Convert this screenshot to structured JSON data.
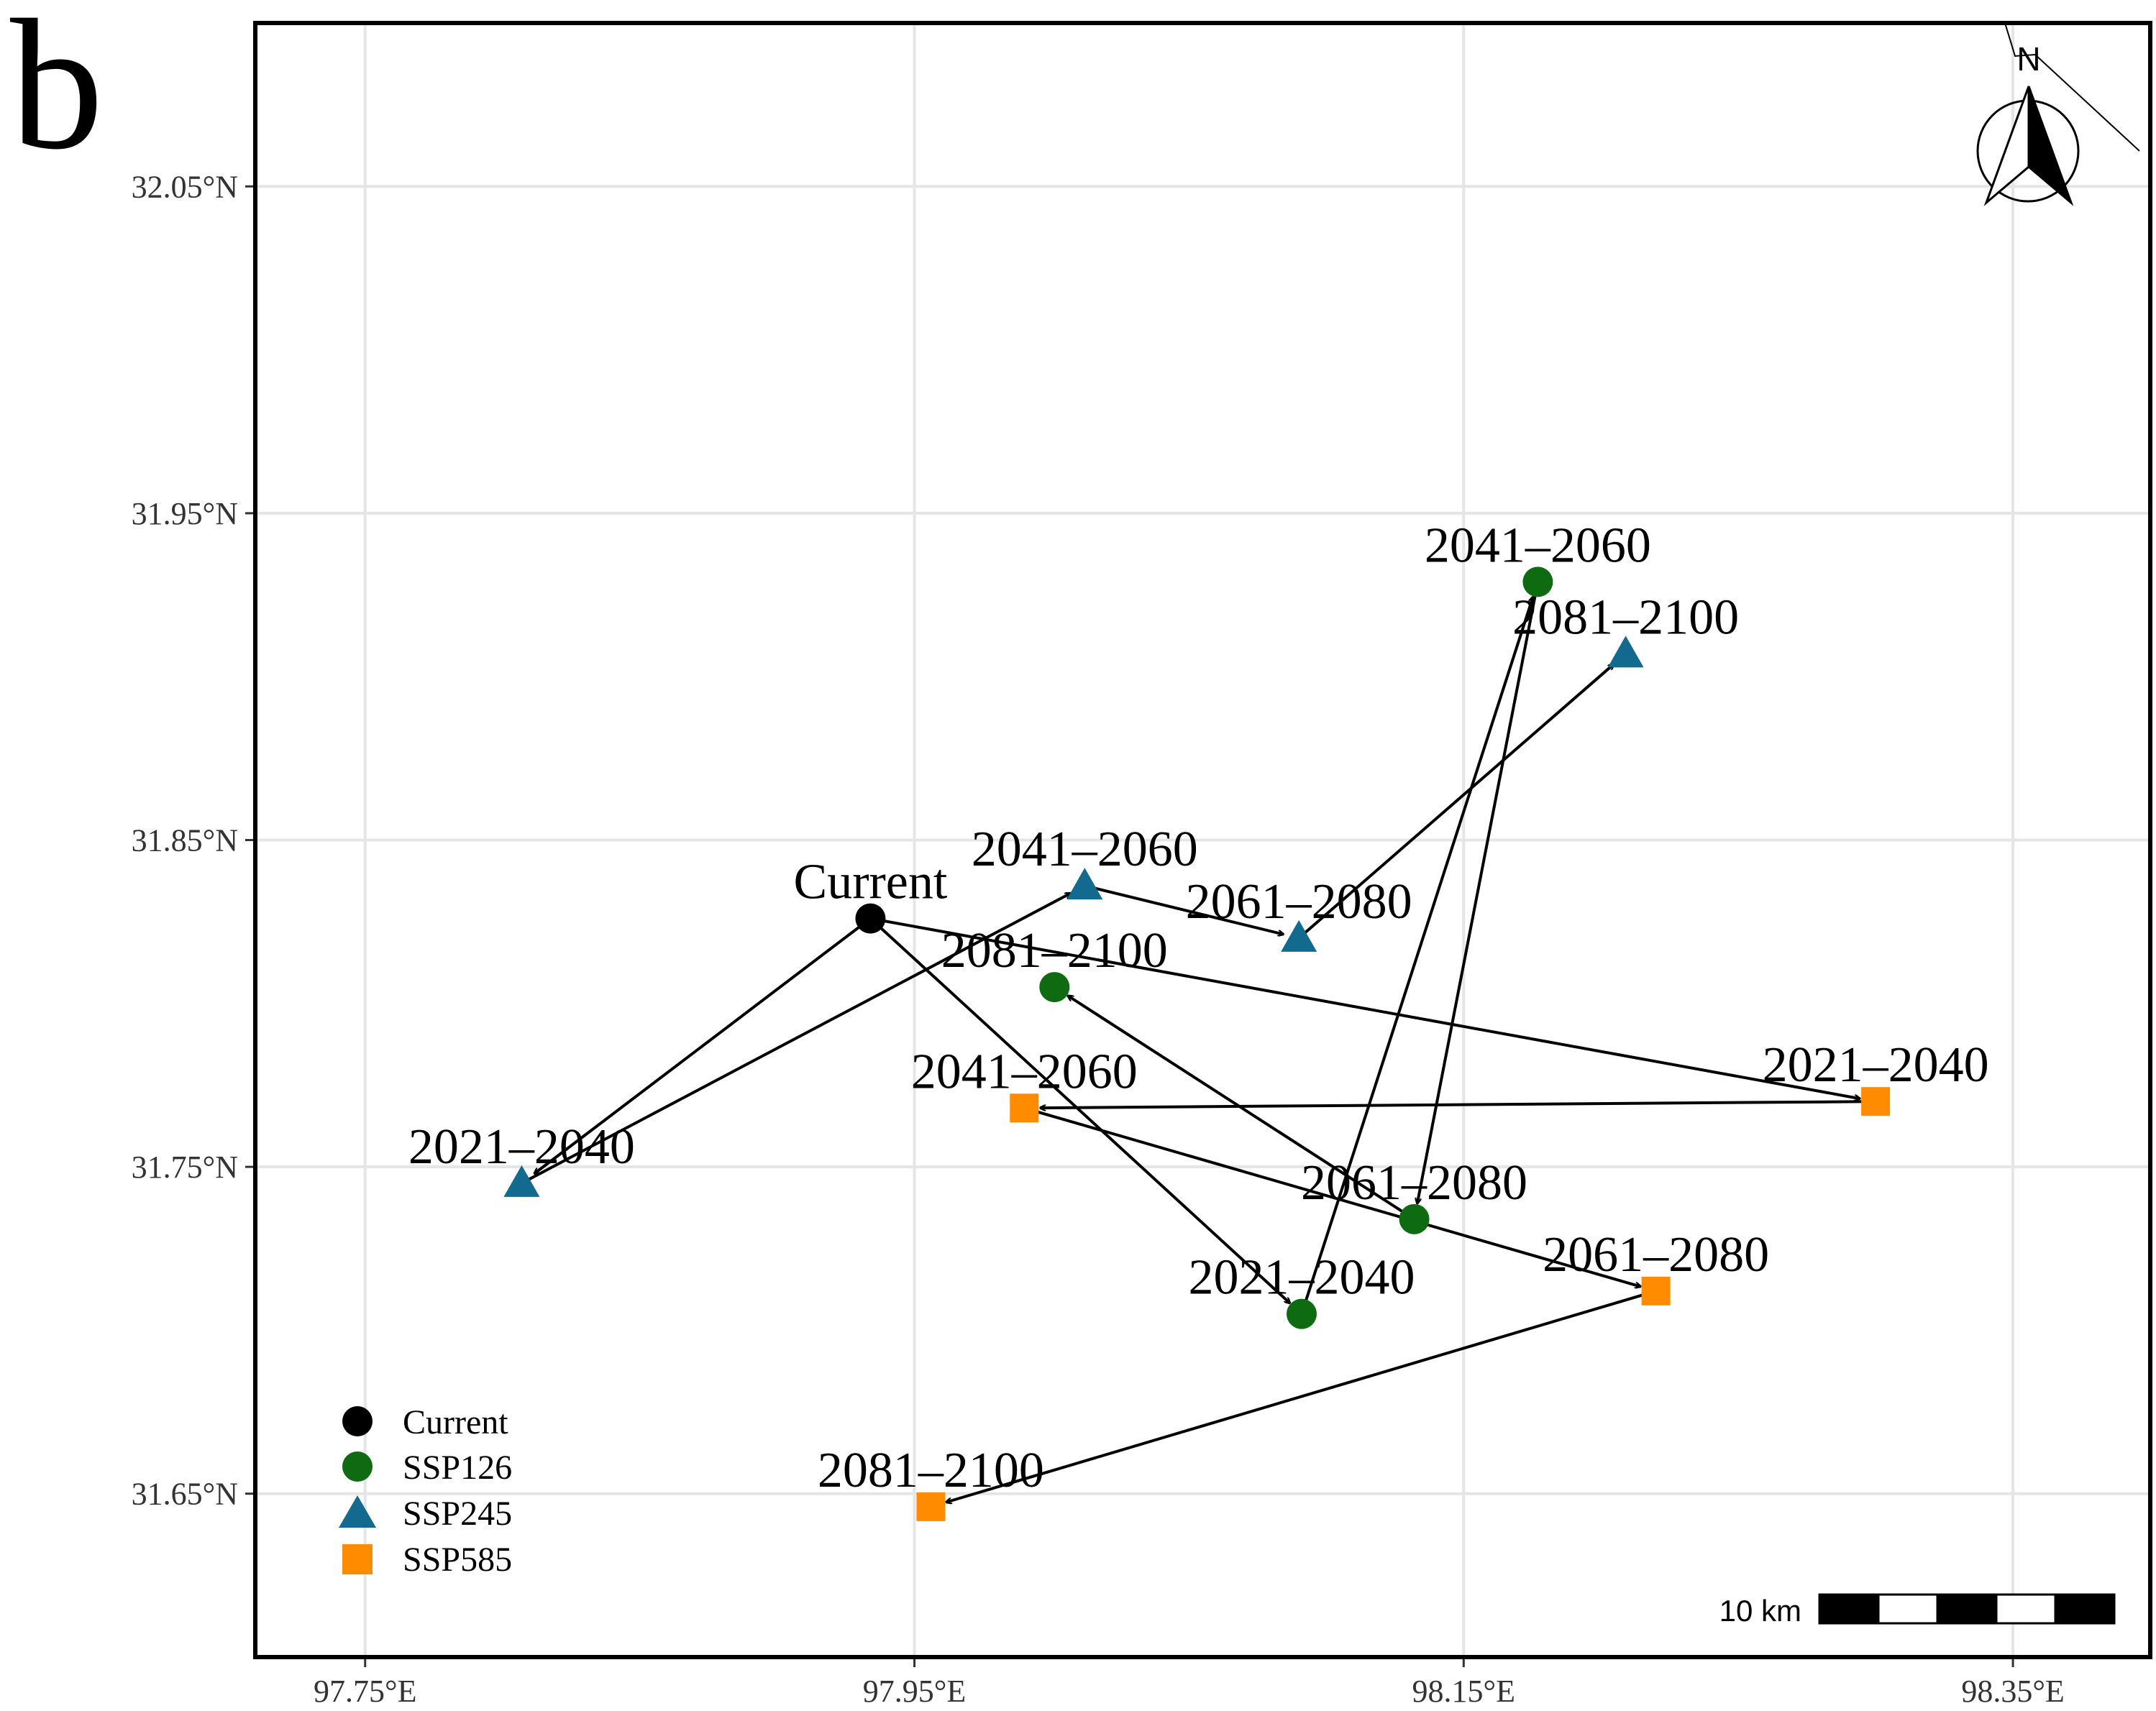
{
  "panel_label": "b",
  "colors": {
    "current": "#000000",
    "SSP126": "#0f6b12",
    "SSP245": "#126a8e",
    "SSP585": "#ff8c00",
    "grid": "#e5e5e5",
    "path": "#000000"
  },
  "north_arrow": {
    "label": "N"
  },
  "scale_bar": {
    "label": "10 km"
  },
  "chart_data": {
    "type": "scatter",
    "title": "",
    "xlabel": "",
    "ylabel": "",
    "xlim": [
      97.71,
      98.4
    ],
    "ylim": [
      31.6,
      32.1
    ],
    "x_ticks": [
      97.75,
      97.95,
      98.15,
      98.35
    ],
    "x_tick_labels": [
      "97.75°E",
      "97.95°E",
      "98.15°E",
      "98.35°E"
    ],
    "y_ticks": [
      31.65,
      31.75,
      31.85,
      31.95,
      32.05
    ],
    "y_tick_labels": [
      "31.65°N",
      "31.75°N",
      "31.85°N",
      "31.95°N",
      "32.05°N"
    ],
    "legend": {
      "position": "bottom-left",
      "entries": [
        {
          "name": "Current",
          "shape": "circle"
        },
        {
          "name": "SSP126",
          "shape": "circle"
        },
        {
          "name": "SSP245",
          "shape": "triangle"
        },
        {
          "name": "SSP585",
          "shape": "square"
        }
      ]
    },
    "current": {
      "label": "Current",
      "x": 97.934,
      "y": 31.826
    },
    "series": [
      {
        "name": "SSP126",
        "shape": "circle",
        "points": [
          {
            "label": "2021–2040",
            "x": 98.091,
            "y": 31.705
          },
          {
            "label": "2041–2060",
            "x": 98.177,
            "y": 31.929
          },
          {
            "label": "2061–2080",
            "x": 98.132,
            "y": 31.734
          },
          {
            "label": "2081–2100",
            "x": 98.001,
            "y": 31.805
          }
        ]
      },
      {
        "name": "SSP245",
        "shape": "triangle",
        "points": [
          {
            "label": "2021–2040",
            "x": 97.807,
            "y": 31.745
          },
          {
            "label": "2041–2060",
            "x": 98.012,
            "y": 31.836
          },
          {
            "label": "2061–2080",
            "x": 98.09,
            "y": 31.82
          },
          {
            "label": "2081–2100",
            "x": 98.209,
            "y": 31.907
          }
        ]
      },
      {
        "name": "SSP585",
        "shape": "square",
        "points": [
          {
            "label": "2021–2040",
            "x": 98.3,
            "y": 31.77
          },
          {
            "label": "2041–2060",
            "x": 97.99,
            "y": 31.768
          },
          {
            "label": "2061–2080",
            "x": 98.22,
            "y": 31.712
          },
          {
            "label": "2081–2100",
            "x": 97.956,
            "y": 31.646
          }
        ]
      }
    ]
  }
}
